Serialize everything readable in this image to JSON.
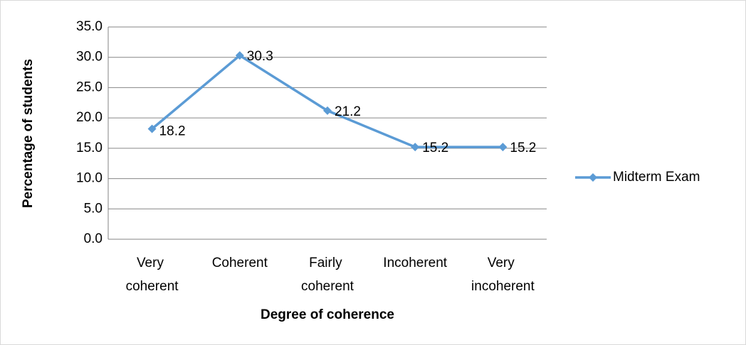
{
  "chart_data": {
    "type": "line",
    "categories": [
      "Very coherent",
      "Coherent",
      "Fairly coherent",
      "Incoherent",
      "Very incoherent"
    ],
    "series": [
      {
        "name": "Midterm Exam",
        "color": "#5b9bd5",
        "values": [
          18.2,
          30.3,
          21.2,
          15.2,
          15.2
        ]
      }
    ],
    "xlabel": "Degree of coherence",
    "ylabel": "Percentage of students",
    "ylim": [
      0,
      35
    ],
    "yticks": [
      {
        "value": 0,
        "label": "0.0"
      },
      {
        "value": 5,
        "label": "5.0"
      },
      {
        "value": 10,
        "label": "10.0"
      },
      {
        "value": 15,
        "label": "15.0"
      },
      {
        "value": 20,
        "label": "20.0"
      },
      {
        "value": 25,
        "label": "25.0"
      },
      {
        "value": 30,
        "label": "30.0"
      },
      {
        "value": 35,
        "label": "35.0"
      }
    ],
    "grid": true,
    "legend": "right"
  }
}
